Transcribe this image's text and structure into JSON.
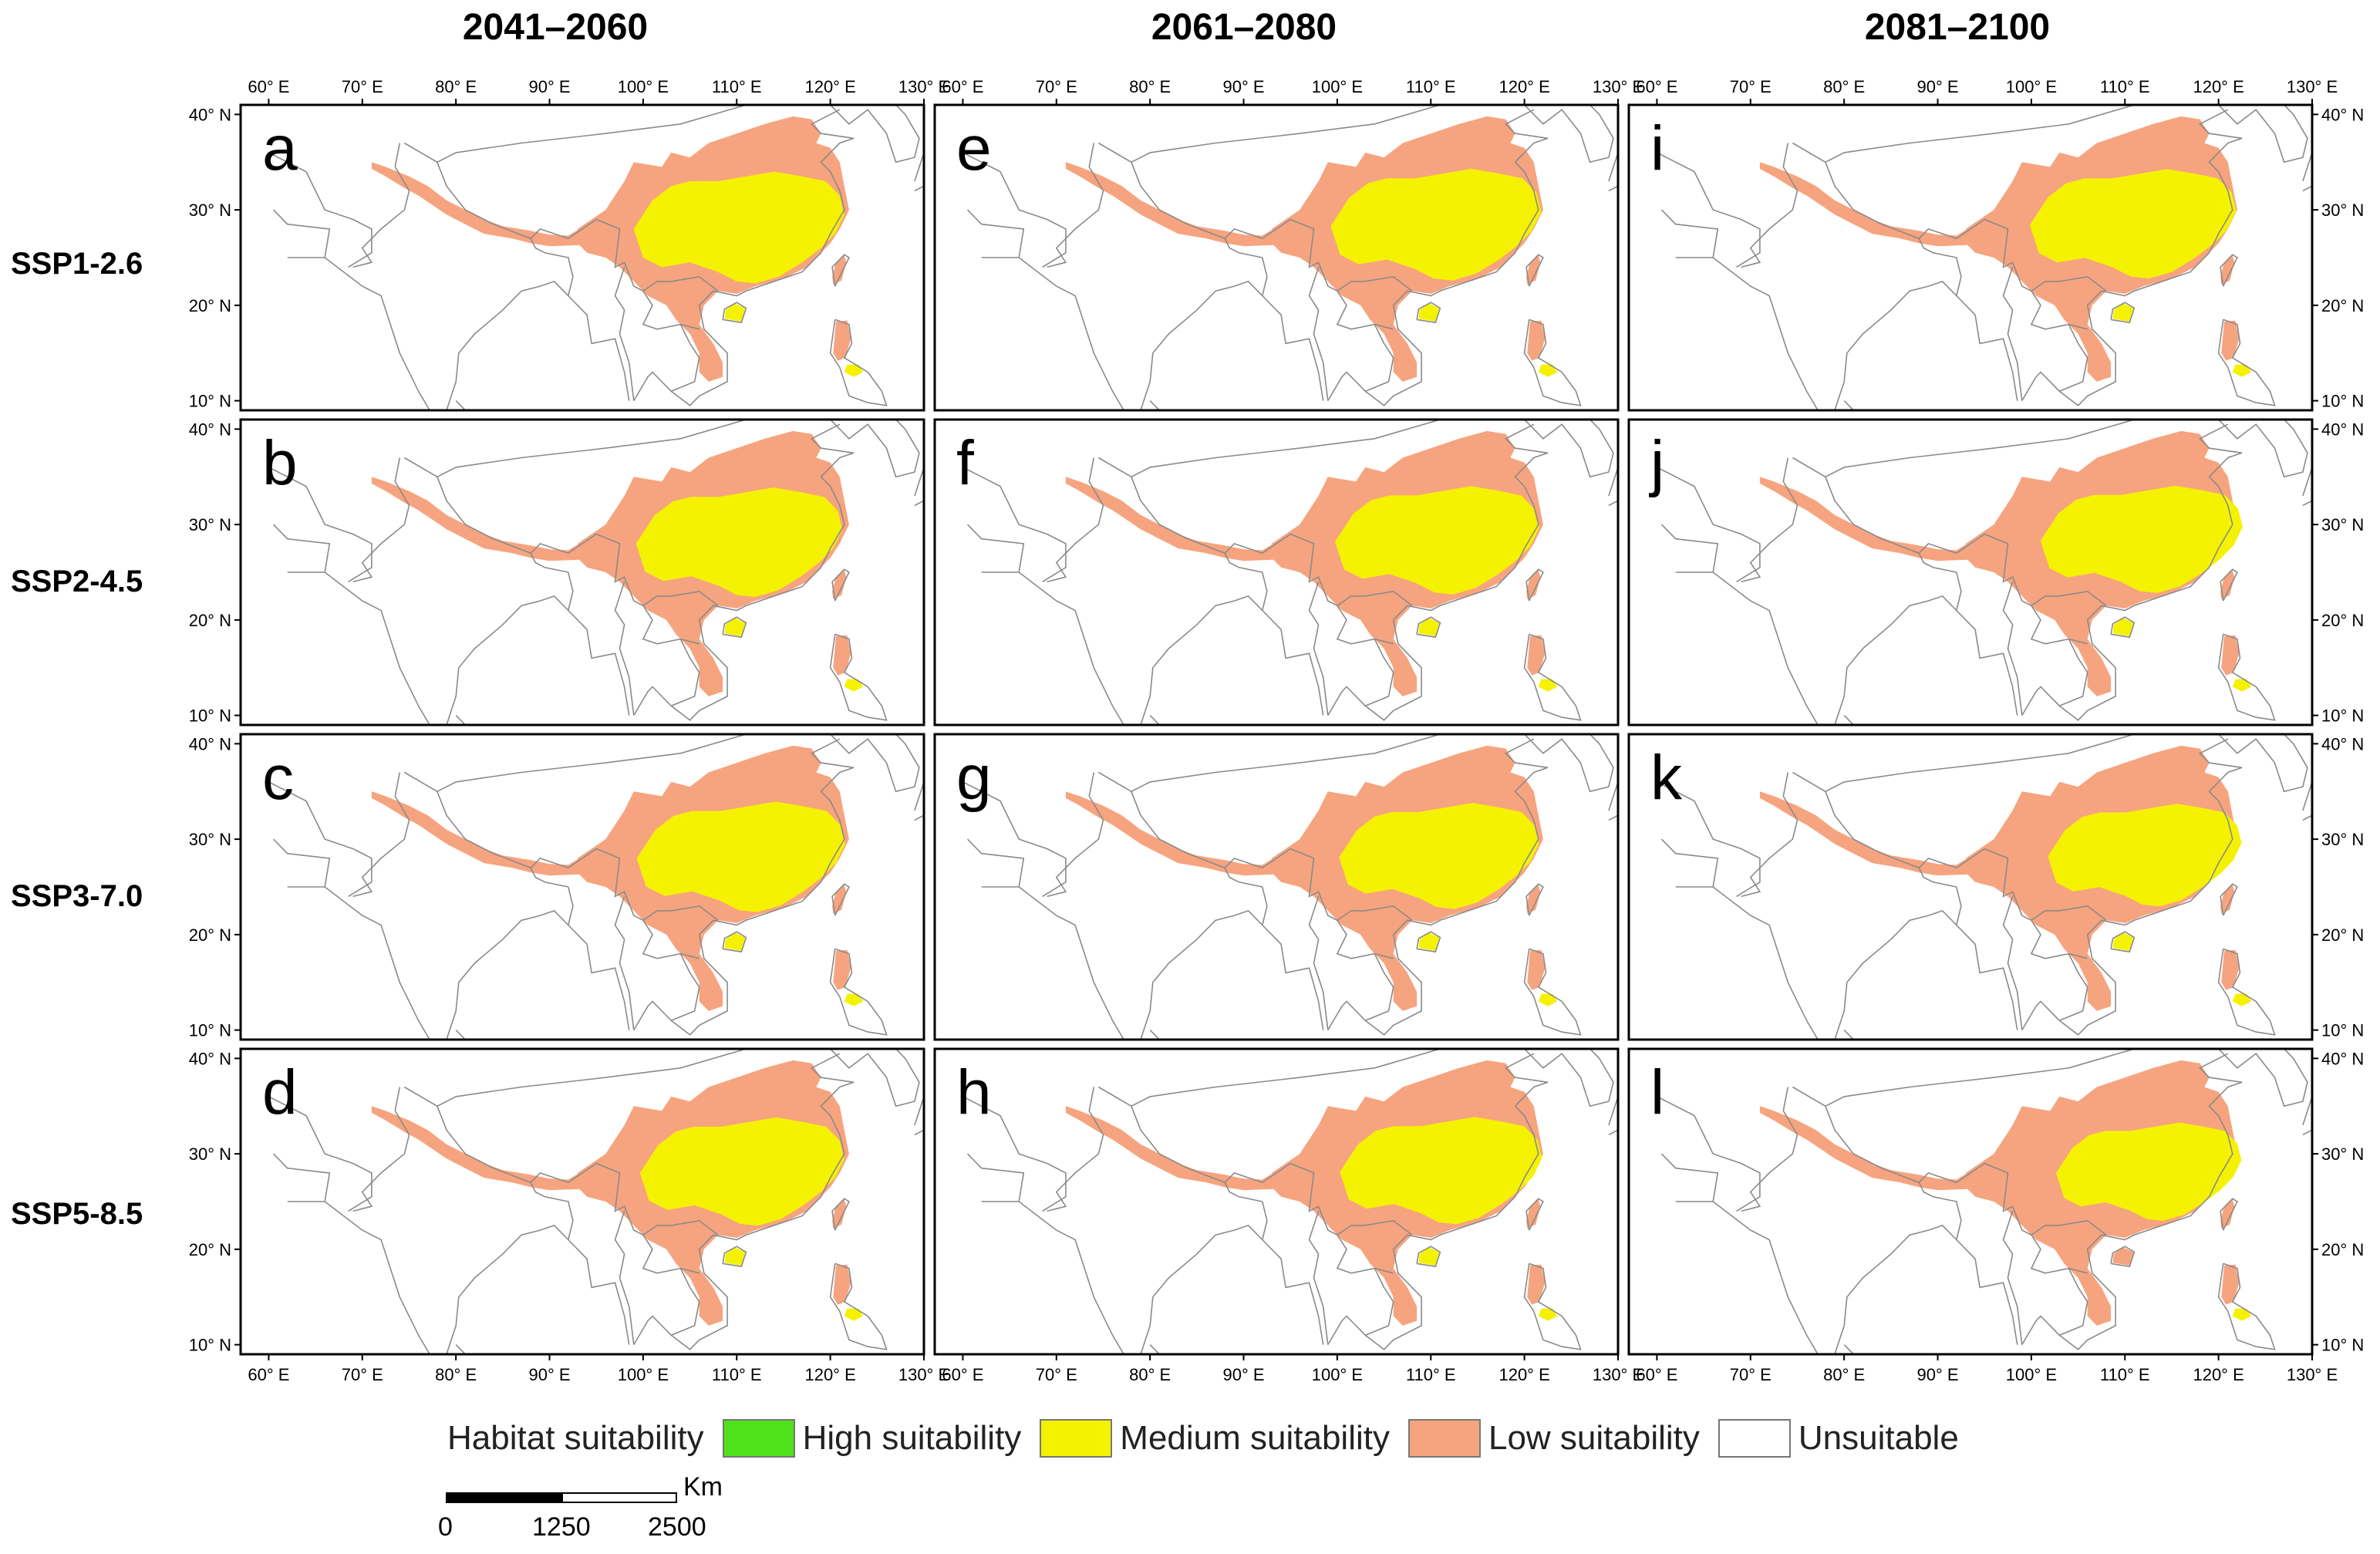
{
  "columns": [
    "2041–2060",
    "2061–2080",
    "2081–2100"
  ],
  "rows": [
    "SSP1-2.6",
    "SSP2-4.5",
    "SSP3-7.0",
    "SSP5-8.5"
  ],
  "panels": [
    [
      "a",
      "e",
      "i"
    ],
    [
      "b",
      "f",
      "j"
    ],
    [
      "c",
      "g",
      "k"
    ],
    [
      "d",
      "h",
      "l"
    ]
  ],
  "axes": {
    "lon_ticks": [
      "60° E",
      "70° E",
      "80° E",
      "90° E",
      "100° E",
      "110° E",
      "120° E",
      "130° E"
    ],
    "lat_ticks": [
      "40° N",
      "30° N",
      "20° N",
      "10° N"
    ],
    "lon_values": [
      60,
      70,
      80,
      90,
      100,
      110,
      120,
      130
    ],
    "lat_values": [
      40,
      30,
      20,
      10
    ]
  },
  "legend": {
    "title": "Habitat suitability",
    "items": [
      {
        "label": "High suitability",
        "color": "#4fe11a"
      },
      {
        "label": "Medium suitability",
        "color": "#f5f200"
      },
      {
        "label": "Low suitability",
        "color": "#f6a47f"
      },
      {
        "label": "Unsuitable",
        "color": "#ffffff"
      }
    ]
  },
  "scale_bar": {
    "unit": "Km",
    "labels": [
      "0",
      "1250",
      "2500"
    ]
  }
}
